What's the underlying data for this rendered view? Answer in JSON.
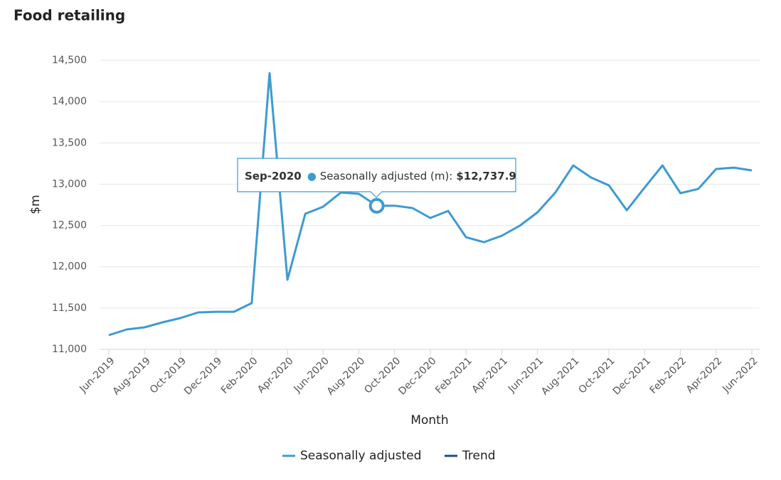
{
  "chart_data": {
    "type": "line",
    "title": "Food retailing",
    "x_label": "Month",
    "y_label": "$m",
    "categories": [
      "Jun-2019",
      null,
      "Aug-2019",
      null,
      "Oct-2019",
      null,
      "Dec-2019",
      null,
      "Feb-2020",
      null,
      "Apr-2020",
      null,
      "Jun-2020",
      null,
      "Aug-2020",
      null,
      "Oct-2020",
      null,
      "Dec-2020",
      null,
      "Feb-2021",
      null,
      "Apr-2021",
      null,
      "Jun-2021",
      null,
      "Aug-2021",
      null,
      "Oct-2021",
      null,
      "Dec-2021",
      null,
      "Feb-2022",
      null,
      "Apr-2022",
      null,
      "Jun-2022"
    ],
    "series": [
      {
        "name": "Seasonally adjusted",
        "color": "#3d9bd0",
        "values": [
          11172,
          11241,
          11267,
          11327,
          11378,
          11447,
          11455,
          11455,
          11560,
          14345,
          11843,
          12642,
          12728,
          12900,
          12883,
          12737.9,
          12740,
          12711,
          12591,
          12677,
          12358,
          12298,
          12376,
          12496,
          12660,
          12900,
          13227,
          13081,
          12986,
          12685,
          12960,
          13227,
          12892,
          12943,
          13184,
          13201,
          13167
        ]
      },
      {
        "name": "Trend",
        "color": "#1d4f7c",
        "values": [
          null,
          null,
          null,
          null,
          null,
          null,
          null,
          null,
          null,
          null,
          null,
          null,
          null,
          null,
          null,
          null,
          null,
          null,
          null,
          null,
          null,
          null,
          null,
          null,
          null,
          null,
          null,
          null,
          null,
          null,
          null,
          null,
          null,
          null,
          null,
          null,
          null
        ]
      }
    ],
    "ylim": [
      11000,
      14500
    ],
    "yticks": [
      {
        "value": 11000,
        "label": "11,000"
      },
      {
        "value": 11500,
        "label": "11,500"
      },
      {
        "value": 12000,
        "label": "12,000"
      },
      {
        "value": 12500,
        "label": "12,500"
      },
      {
        "value": 13000,
        "label": "13,000"
      },
      {
        "value": 13500,
        "label": "13,500"
      },
      {
        "value": 14000,
        "label": "14,000"
      },
      {
        "value": 14500,
        "label": "14,500"
      }
    ],
    "grid": true,
    "legend": "bottom",
    "tooltip": {
      "index": 15,
      "category": "Sep-2020",
      "series_label": "Seasonally adjusted (m):",
      "value_label": "$12,737.9"
    }
  }
}
